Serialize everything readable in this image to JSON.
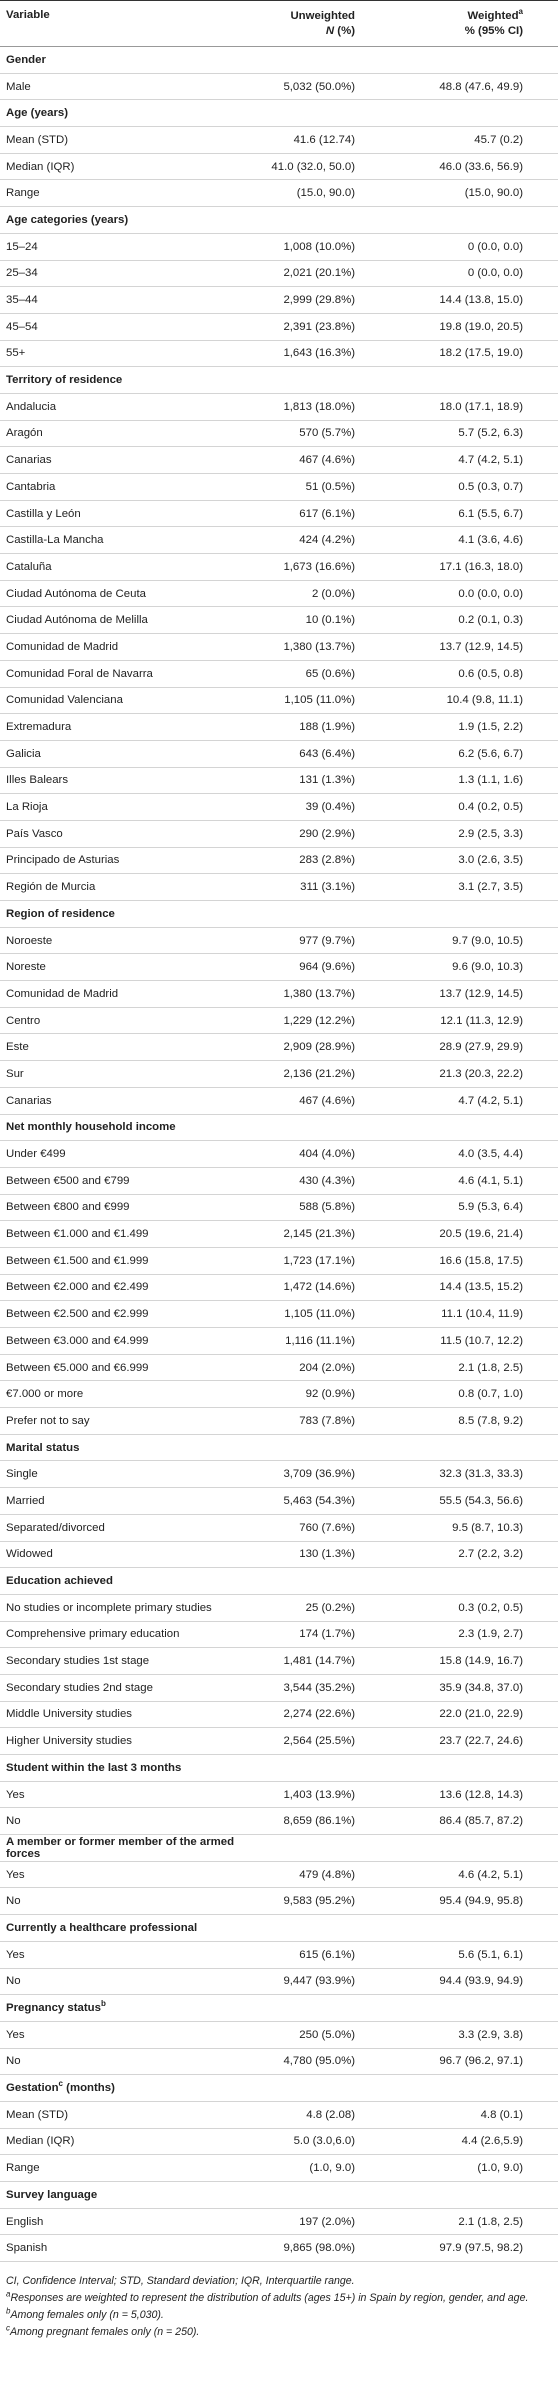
{
  "header": {
    "variable": "Variable",
    "unweighted": "Unweighted",
    "unweighted_italic": "N",
    "unweighted_rest": "(%)",
    "weighted": "Weighted",
    "weighted_sup": "a",
    "weighted_rest": "% (95% CI)"
  },
  "sections": [
    {
      "title": "Gender",
      "rows": [
        [
          "Male",
          "5,032 (50.0%)",
          "48.8 (47.6, 49.9)"
        ]
      ]
    },
    {
      "title": "Age (years)",
      "rows": [
        [
          "Mean (STD)",
          "41.6 (12.74)",
          "45.7 (0.2)"
        ],
        [
          "Median (IQR)",
          "41.0 (32.0, 50.0)",
          "46.0 (33.6, 56.9)"
        ],
        [
          "Range",
          "(15.0, 90.0)",
          "(15.0, 90.0)"
        ]
      ]
    },
    {
      "title": "Age categories (years)",
      "rows": [
        [
          "15–24",
          "1,008 (10.0%)",
          "0 (0.0, 0.0)"
        ],
        [
          "25–34",
          "2,021 (20.1%)",
          "0 (0.0, 0.0)"
        ],
        [
          "35–44",
          "2,999 (29.8%)",
          "14.4 (13.8, 15.0)"
        ],
        [
          "45–54",
          "2,391 (23.8%)",
          "19.8 (19.0, 20.5)"
        ],
        [
          "55+",
          "1,643 (16.3%)",
          "18.2 (17.5, 19.0)"
        ]
      ]
    },
    {
      "title": "Territory of residence",
      "rows": [
        [
          "Andalucia",
          "1,813 (18.0%)",
          "18.0 (17.1, 18.9)"
        ],
        [
          "Aragón",
          "570 (5.7%)",
          "5.7 (5.2, 6.3)"
        ],
        [
          "Canarias",
          "467 (4.6%)",
          "4.7 (4.2, 5.1)"
        ],
        [
          "Cantabria",
          "51 (0.5%)",
          "0.5 (0.3, 0.7)"
        ],
        [
          "Castilla y León",
          "617 (6.1%)",
          "6.1 (5.5, 6.7)"
        ],
        [
          "Castilla-La Mancha",
          "424 (4.2%)",
          "4.1 (3.6, 4.6)"
        ],
        [
          "Cataluña",
          "1,673 (16.6%)",
          "17.1 (16.3, 18.0)"
        ],
        [
          "Ciudad Autónoma de Ceuta",
          "2 (0.0%)",
          "0.0 (0.0, 0.0)"
        ],
        [
          "Ciudad Autónoma de Melilla",
          "10 (0.1%)",
          "0.2 (0.1, 0.3)"
        ],
        [
          "Comunidad de Madrid",
          "1,380 (13.7%)",
          "13.7 (12.9, 14.5)"
        ],
        [
          "Comunidad Foral de Navarra",
          "65 (0.6%)",
          "0.6 (0.5, 0.8)"
        ],
        [
          "Comunidad Valenciana",
          "1,105 (11.0%)",
          "10.4 (9.8, 11.1)"
        ],
        [
          "Extremadura",
          "188 (1.9%)",
          "1.9 (1.5, 2.2)"
        ],
        [
          "Galicia",
          "643 (6.4%)",
          "6.2 (5.6, 6.7)"
        ],
        [
          "Illes Balears",
          "131 (1.3%)",
          "1.3 (1.1, 1.6)"
        ],
        [
          "La Rioja",
          "39 (0.4%)",
          "0.4 (0.2, 0.5)"
        ],
        [
          "País Vasco",
          "290 (2.9%)",
          "2.9 (2.5, 3.3)"
        ],
        [
          "Principado de Asturias",
          "283 (2.8%)",
          "3.0 (2.6, 3.5)"
        ],
        [
          "Región de Murcia",
          "311 (3.1%)",
          "3.1 (2.7, 3.5)"
        ]
      ]
    },
    {
      "title": "Region of residence",
      "rows": [
        [
          "Noroeste",
          "977 (9.7%)",
          "9.7 (9.0, 10.5)"
        ],
        [
          "Noreste",
          "964 (9.6%)",
          "9.6 (9.0, 10.3)"
        ],
        [
          "Comunidad de Madrid",
          "1,380 (13.7%)",
          "13.7 (12.9, 14.5)"
        ],
        [
          "Centro",
          "1,229 (12.2%)",
          "12.1 (11.3, 12.9)"
        ],
        [
          "Este",
          "2,909 (28.9%)",
          "28.9 (27.9, 29.9)"
        ],
        [
          "Sur",
          "2,136 (21.2%)",
          "21.3 (20.3, 22.2)"
        ],
        [
          "Canarias",
          "467 (4.6%)",
          "4.7 (4.2, 5.1)"
        ]
      ]
    },
    {
      "title": "Net monthly household income",
      "rows": [
        [
          "Under €499",
          "404 (4.0%)",
          "4.0 (3.5, 4.4)"
        ],
        [
          "Between €500 and €799",
          "430 (4.3%)",
          "4.6 (4.1, 5.1)"
        ],
        [
          "Between €800 and €999",
          "588 (5.8%)",
          "5.9 (5.3, 6.4)"
        ],
        [
          "Between €1.000 and €1.499",
          "2,145 (21.3%)",
          "20.5 (19.6, 21.4)"
        ],
        [
          "Between €1.500 and €1.999",
          "1,723 (17.1%)",
          "16.6 (15.8, 17.5)"
        ],
        [
          "Between €2.000 and €2.499",
          "1,472 (14.6%)",
          "14.4 (13.5, 15.2)"
        ],
        [
          "Between €2.500 and €2.999",
          "1,105 (11.0%)",
          "11.1 (10.4, 11.9)"
        ],
        [
          "Between €3.000 and €4.999",
          "1,116 (11.1%)",
          "11.5 (10.7, 12.2)"
        ],
        [
          "Between €5.000 and €6.999",
          "204 (2.0%)",
          "2.1 (1.8, 2.5)"
        ],
        [
          "€7.000 or more",
          "92 (0.9%)",
          "0.8 (0.7, 1.0)"
        ],
        [
          "Prefer not to say",
          "783 (7.8%)",
          "8.5 (7.8, 9.2)"
        ]
      ]
    },
    {
      "title": "Marital status",
      "rows": [
        [
          "Single",
          "3,709 (36.9%)",
          "32.3 (31.3, 33.3)"
        ],
        [
          "Married",
          "5,463 (54.3%)",
          "55.5 (54.3, 56.6)"
        ],
        [
          "Separated/divorced",
          "760 (7.6%)",
          "9.5 (8.7, 10.3)"
        ],
        [
          "Widowed",
          "130 (1.3%)",
          "2.7 (2.2, 3.2)"
        ]
      ]
    },
    {
      "title": "Education achieved",
      "rows": [
        [
          "No studies or incomplete primary studies",
          "25 (0.2%)",
          "0.3 (0.2, 0.5)"
        ],
        [
          "Comprehensive primary education",
          "174 (1.7%)",
          "2.3 (1.9, 2.7)"
        ],
        [
          "Secondary studies 1st stage",
          "1,481 (14.7%)",
          "15.8 (14.9, 16.7)"
        ],
        [
          "Secondary studies 2nd stage",
          "3,544 (35.2%)",
          "35.9 (34.8, 37.0)"
        ],
        [
          "Middle University studies",
          "2,274 (22.6%)",
          "22.0 (21.0, 22.9)"
        ],
        [
          "Higher University studies",
          "2,564 (25.5%)",
          "23.7 (22.7, 24.6)"
        ]
      ]
    },
    {
      "title": "Student within the last 3 months",
      "rows": [
        [
          "Yes",
          "1,403 (13.9%)",
          "13.6 (12.8, 14.3)"
        ],
        [
          "No",
          "8,659 (86.1%)",
          "86.4 (85.7, 87.2)"
        ]
      ]
    },
    {
      "title": "A member or former member of the armed forces",
      "rows": [
        [
          "Yes",
          "479 (4.8%)",
          "4.6 (4.2, 5.1)"
        ],
        [
          "No",
          "9,583 (95.2%)",
          "95.4 (94.9, 95.8)"
        ]
      ]
    },
    {
      "title": "Currently a healthcare professional",
      "rows": [
        [
          "Yes",
          "615 (6.1%)",
          "5.6 (5.1, 6.1)"
        ],
        [
          "No",
          "9,447 (93.9%)",
          "94.4 (93.9, 94.9)"
        ]
      ]
    },
    {
      "title": "Pregnancy status",
      "sup": "b",
      "rows": [
        [
          "Yes",
          "250 (5.0%)",
          "3.3 (2.9, 3.8)"
        ],
        [
          "No",
          "4,780 (95.0%)",
          "96.7 (96.2, 97.1)"
        ]
      ]
    },
    {
      "title": "Gestation",
      "sup": "c",
      "rest": "(months)",
      "rows": [
        [
          "Mean (STD)",
          "4.8 (2.08)",
          "4.8 (0.1)"
        ],
        [
          "Median (IQR)",
          "5.0 (3.0,6.0)",
          "4.4 (2.6,5.9)"
        ],
        [
          "Range",
          "(1.0, 9.0)",
          "(1.0, 9.0)"
        ]
      ]
    },
    {
      "title": "Survey language",
      "rows": [
        [
          "English",
          "197 (2.0%)",
          "2.1 (1.8, 2.5)"
        ],
        [
          "Spanish",
          "9,865 (98.0%)",
          "97.9 (97.5, 98.2)"
        ]
      ]
    }
  ],
  "notes": {
    "abbrev": "CI, Confidence Interval; STD, Standard deviation; IQR, Interquartile range.",
    "a_sup": "a",
    "a": "Responses are weighted to represent the distribution of adults (ages 15+) in Spain by region, gender, and age.",
    "b_sup": "b",
    "b": "Among females only (n = 5,030).",
    "c_sup": "c",
    "c": "Among pregnant females only (n = 250)."
  }
}
